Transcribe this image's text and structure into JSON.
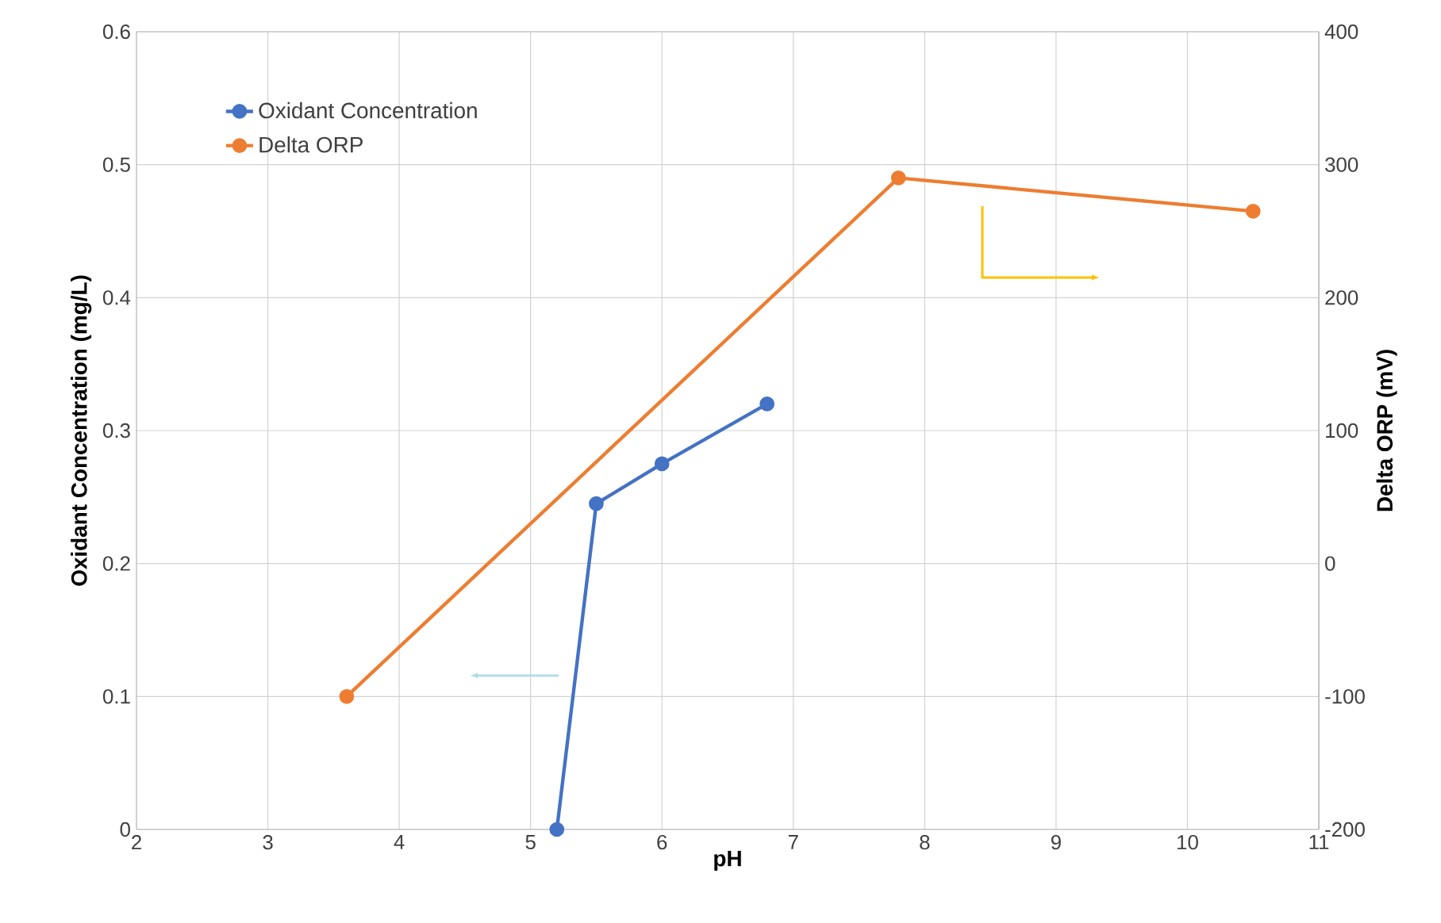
{
  "chart_data": {
    "type": "line",
    "xlabel": "pH",
    "ylabel": "Oxidant Concentration (mg/L)",
    "y2label": "Delta ORP (mV)",
    "xlim": [
      2,
      11
    ],
    "xticks": [
      2,
      3,
      4,
      5,
      6,
      7,
      8,
      9,
      10,
      11
    ],
    "ylim": [
      0,
      0.6
    ],
    "yticks": [
      0,
      0.1,
      0.2,
      0.3,
      0.4,
      0.5,
      0.6
    ],
    "y2lim": [
      -200,
      400
    ],
    "y2ticks": [
      -200,
      -100,
      0,
      100,
      200,
      300,
      400
    ],
    "grid": true,
    "legend": "top left",
    "marker": "circle",
    "line_style": "solid",
    "series": [
      {
        "name": "Oxidant Concentration",
        "color": "#4472c4",
        "x": [
          5.2,
          5.5,
          6.0,
          6.8
        ],
        "values": [
          0,
          0.245,
          0.275,
          0.32
        ]
      },
      {
        "name": "Delta ORP",
        "color": "#ed7d31",
        "axis": "y2",
        "x": [
          3.6,
          7.8,
          10.5
        ],
        "values": [
          -100,
          290,
          265
        ]
      }
    ]
  }
}
